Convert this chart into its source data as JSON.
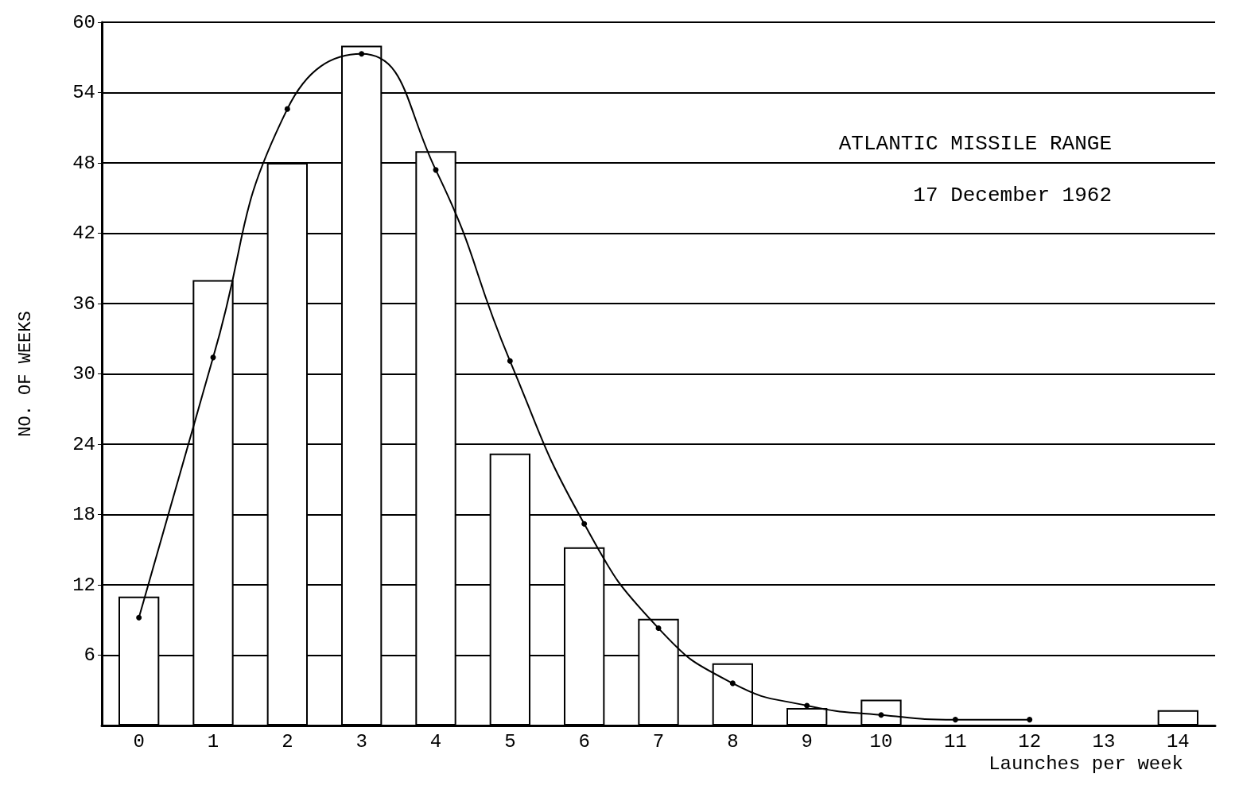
{
  "chart_data": {
    "type": "bar",
    "xlabel": "Launches per week",
    "ylabel": "NO. OF WEEKS",
    "annotations": [
      "ATLANTIC MISSILE RANGE",
      "17 December 1962"
    ],
    "categories": [
      "0",
      "1",
      "2",
      "3",
      "4",
      "5",
      "6",
      "7",
      "8",
      "9",
      "10",
      "11",
      "12",
      "13",
      "14"
    ],
    "series": [
      {
        "color": "#ffffff",
        "values": [
          11,
          38,
          48,
          58,
          49,
          23.2,
          15.2,
          9.1,
          5.3,
          1.5,
          2.2,
          null,
          null,
          null,
          1.3
        ]
      },
      {
        "type": "line",
        "color": "#000000",
        "marker": "circle",
        "values": [
          9.2,
          31.4,
          52.6,
          57.3,
          47.4,
          31.1,
          17.2,
          8.3,
          3.6,
          1.7,
          0.9,
          0.5,
          0.5,
          null,
          null
        ]
      }
    ],
    "ylim": [
      0,
      60
    ],
    "yticks": [
      6,
      12,
      18,
      24,
      30,
      36,
      42,
      48,
      54,
      60
    ],
    "grid": "y"
  }
}
